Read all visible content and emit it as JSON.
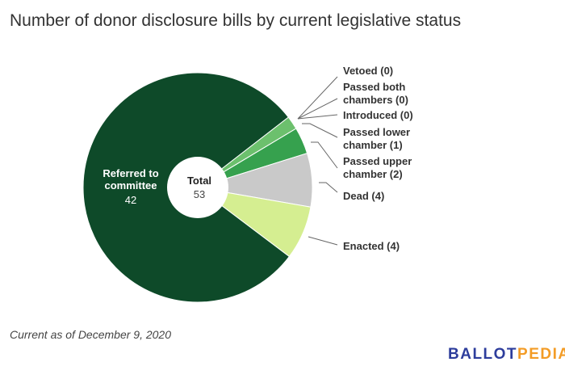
{
  "chart_data": {
    "type": "pie",
    "title": "Number of donor disclosure bills by current legislative status",
    "center_label": {
      "title": "Total",
      "value": "53"
    },
    "slices": [
      {
        "label": "Referred to committee",
        "value": 42,
        "color": "#0e4a29"
      },
      {
        "label": "Vetoed",
        "value": 0,
        "color": "#1a6b35"
      },
      {
        "label": "Passed both chambers",
        "value": 0,
        "color": "#1a6b35"
      },
      {
        "label": "Introduced",
        "value": 0,
        "color": "#1a6b35"
      },
      {
        "label": "Passed lower chamber",
        "value": 1,
        "color": "#6cc06d"
      },
      {
        "label": "Passed upper chamber",
        "value": 2,
        "color": "#36a14e"
      },
      {
        "label": "Dead",
        "value": 4,
        "color": "#c9c9c9"
      },
      {
        "label": "Enacted",
        "value": 4,
        "color": "#d5ee91"
      }
    ],
    "callouts": [
      "Vetoed (0)",
      "Passed both chambers (0)",
      "Introduced (0)",
      "Passed lower chamber (1)",
      "Passed upper chamber (2)",
      "Dead (4)",
      "Enacted (4)"
    ],
    "inner_label": {
      "name": "Referred to committee",
      "value": "42"
    }
  },
  "footer": {
    "note": "Current as of December 9, 2020",
    "logo_a": "BALLOT",
    "logo_b": "PEDIA"
  }
}
